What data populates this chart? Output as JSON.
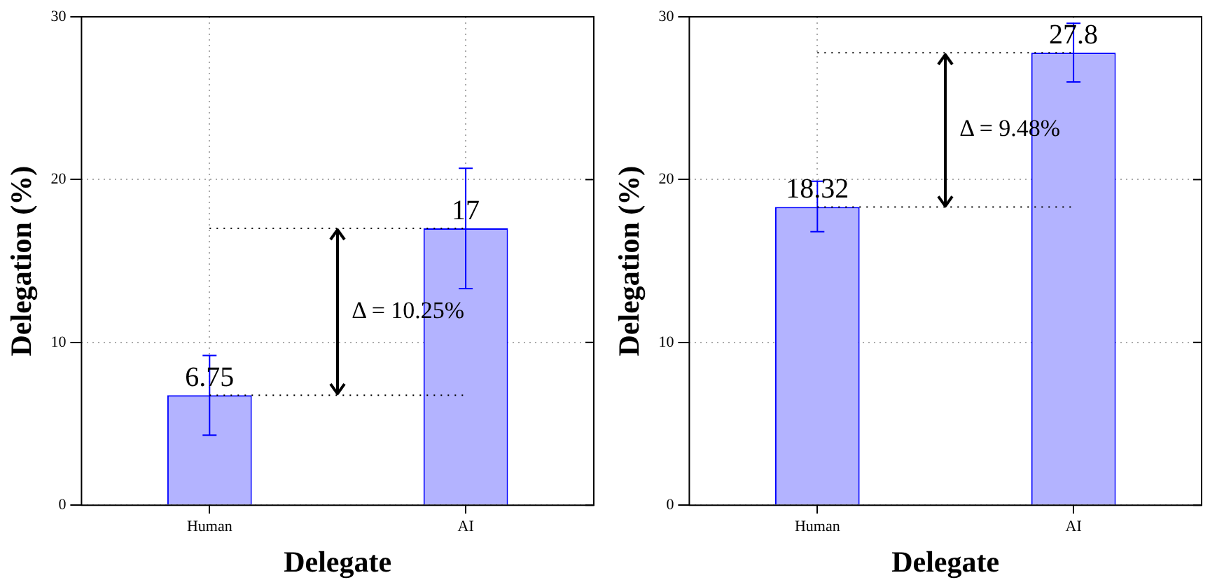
{
  "chart_data": [
    {
      "type": "bar",
      "xlabel": "Delegate",
      "ylabel": "Delegation (%)",
      "categories": [
        "Human",
        "AI"
      ],
      "values": [
        6.75,
        17
      ],
      "color": "#b3b3ff",
      "errors": [
        [
          4.3,
          9.2
        ],
        [
          13.3,
          20.7
        ]
      ],
      "data_labels": true,
      "ylim": [
        0,
        30
      ],
      "yticks": [
        0,
        10,
        20,
        30
      ],
      "grid": true,
      "annotations": [
        "Δ = 10.25%"
      ]
    },
    {
      "type": "bar",
      "xlabel": "Delegate",
      "ylabel": "Delegation (%)",
      "categories": [
        "Human",
        "AI"
      ],
      "values": [
        18.32,
        27.8
      ],
      "color": "#b3b3ff",
      "errors": [
        [
          16.8,
          19.9
        ],
        [
          26.0,
          29.6
        ]
      ],
      "data_labels": true,
      "ylim": [
        0,
        30
      ],
      "yticks": [
        0,
        10,
        20,
        30
      ],
      "grid": true,
      "annotations": [
        "Δ = 9.48%"
      ]
    }
  ]
}
